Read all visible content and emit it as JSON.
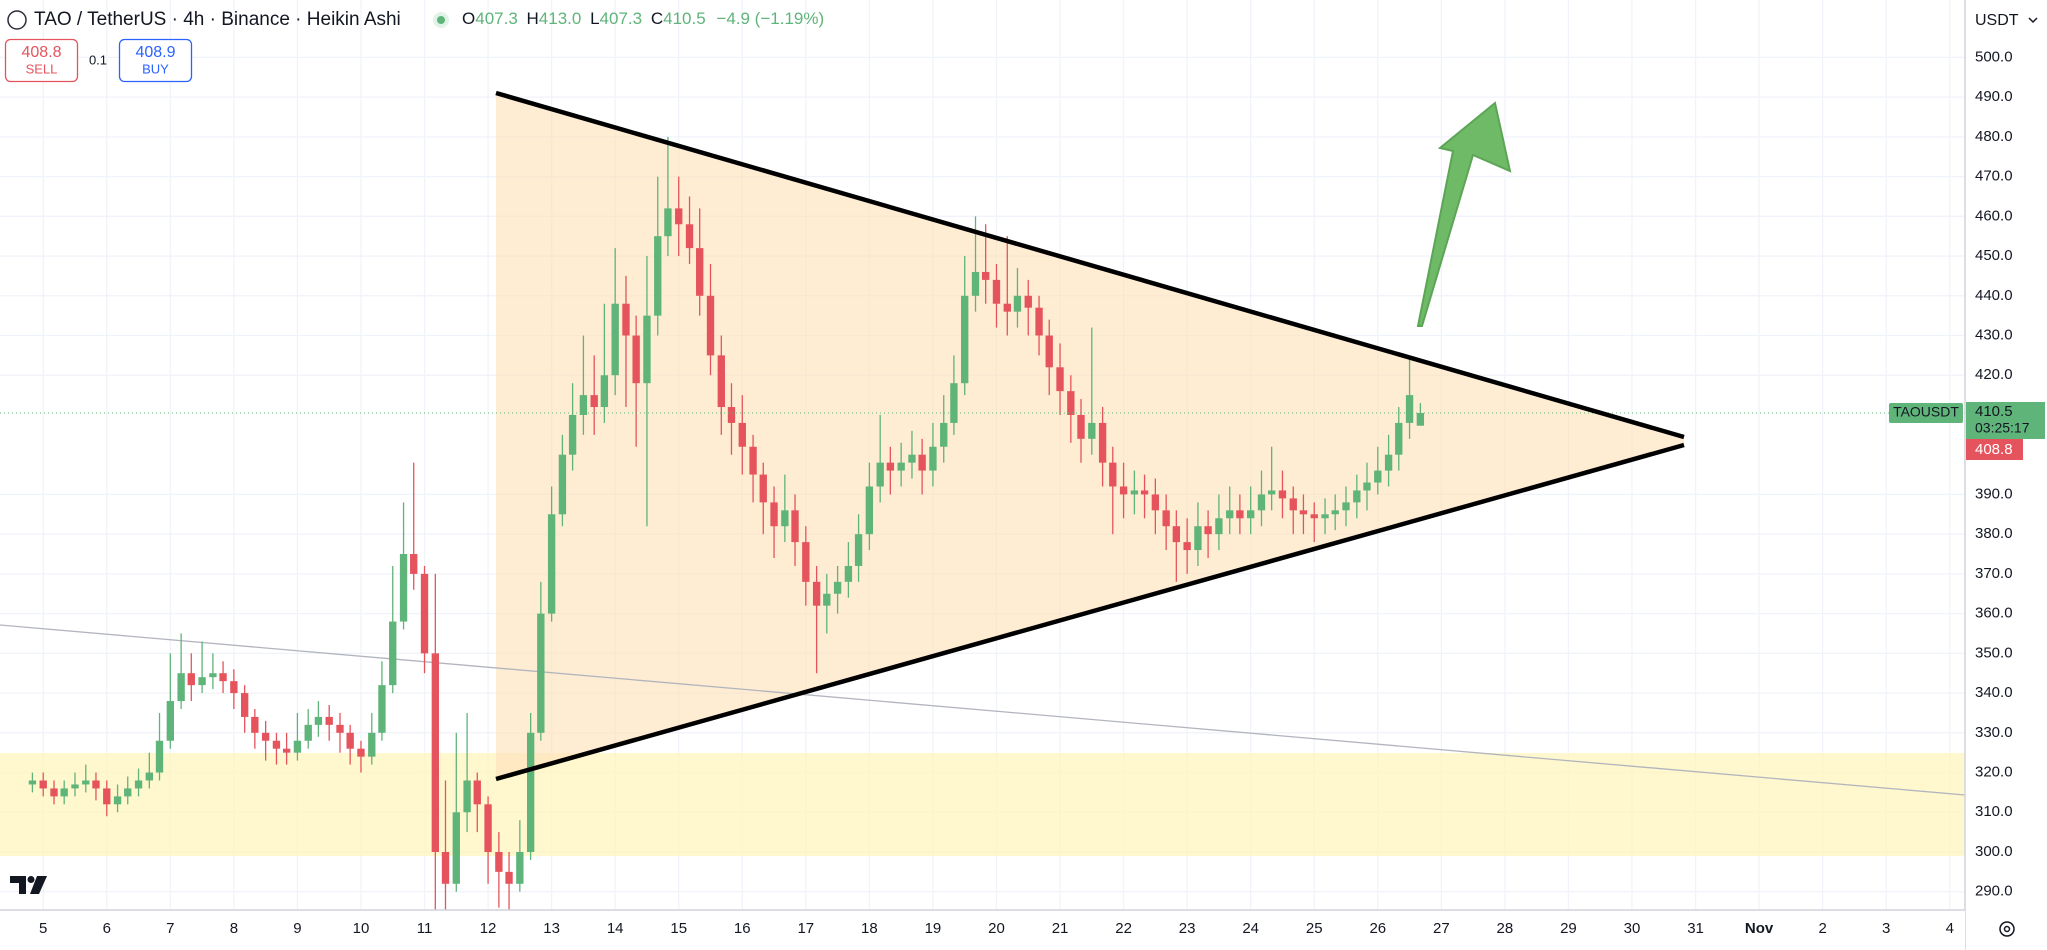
{
  "header": {
    "symbol": "TAO / TetherUS · 4h · Binance · Heikin Ashi",
    "ohlc": [
      {
        "key": "O",
        "value": "407.3"
      },
      {
        "key": "H",
        "value": "413.0"
      },
      {
        "key": "L",
        "value": "407.3"
      },
      {
        "key": "C",
        "value": "410.5"
      }
    ],
    "change": "−4.9 (−1.19%)"
  },
  "trade": {
    "sell_price": "408.8",
    "sell": "SELL",
    "quantity": "0.1",
    "buy_price": "408.9",
    "buy": "BUY"
  },
  "currency": "USDT",
  "chart_data": {
    "type": "candlestick",
    "up_color": "#5fb47a",
    "down_color": "#e5545c",
    "grid": true,
    "xlim": [
      4.32,
      35.24
    ],
    "ylim": [
      285.4,
      514.45
    ],
    "xticks": [
      5,
      6,
      7,
      8,
      9,
      10,
      11,
      12,
      13,
      14,
      15,
      16,
      17,
      18,
      19,
      20,
      21,
      22,
      23,
      24,
      25,
      26,
      27,
      28,
      29,
      30,
      31,
      {
        "value": 32,
        "label": "Nov"
      },
      {
        "value": 33,
        "label": "2"
      },
      {
        "value": 34,
        "label": "3"
      },
      {
        "value": 35,
        "label": "4"
      }
    ],
    "yticks": [
      {
        "value": 290,
        "label": "290.0"
      },
      {
        "value": 300,
        "label": "300.0"
      },
      {
        "value": 310,
        "label": "310.0"
      },
      {
        "value": 320,
        "label": "320.0"
      },
      {
        "value": 330,
        "label": "330.0"
      },
      {
        "value": 340,
        "label": "340.0"
      },
      {
        "value": 350,
        "label": "350.0"
      },
      {
        "value": 360,
        "label": "360.0"
      },
      {
        "value": 370,
        "label": "370.0"
      },
      {
        "value": 380,
        "label": "380.0"
      },
      {
        "value": 390,
        "label": "390.0"
      },
      {
        "value": 420,
        "label": "420.0"
      },
      {
        "value": 430,
        "label": "430.0"
      },
      {
        "value": 440,
        "label": "440.0"
      },
      {
        "value": 450,
        "label": "450.0"
      },
      {
        "value": 460,
        "label": "460.0"
      },
      {
        "value": 470,
        "label": "470.0"
      },
      {
        "value": 480,
        "label": "480.0"
      },
      {
        "value": 490,
        "label": "490.0"
      },
      {
        "value": 500,
        "label": "500.0"
      }
    ],
    "x": [
      4.83,
      5,
      5.17,
      5.33,
      5.5,
      5.67,
      5.83,
      6,
      6.17,
      6.33,
      6.5,
      6.67,
      6.83,
      7,
      7.17,
      7.33,
      7.5,
      7.67,
      7.83,
      8,
      8.17,
      8.33,
      8.5,
      8.67,
      8.83,
      9,
      9.17,
      9.33,
      9.5,
      9.67,
      9.83,
      10,
      10.17,
      10.33,
      10.5,
      10.67,
      10.83,
      11,
      11.17,
      11.33,
      11.5,
      11.67,
      11.83,
      12,
      12.17,
      12.33,
      12.5,
      12.67,
      12.83,
      13,
      13.17,
      13.33,
      13.5,
      13.67,
      13.83,
      14,
      14.17,
      14.33,
      14.5,
      14.67,
      14.83,
      15,
      15.17,
      15.33,
      15.5,
      15.67,
      15.83,
      16,
      16.17,
      16.33,
      16.5,
      16.67,
      16.83,
      17,
      17.17,
      17.33,
      17.5,
      17.67,
      17.83,
      18,
      18.17,
      18.33,
      18.5,
      18.67,
      18.83,
      19,
      19.17,
      19.33,
      19.5,
      19.67,
      19.83,
      20,
      20.17,
      20.33,
      20.5,
      20.67,
      20.83,
      21,
      21.17,
      21.33,
      21.5,
      21.67,
      21.83,
      22,
      22.17,
      22.33,
      22.5,
      22.67,
      22.83,
      23,
      23.17,
      23.33,
      23.5,
      23.67,
      23.83,
      24,
      24.17,
      24.33,
      24.5,
      24.67,
      24.83,
      25,
      25.17,
      25.33,
      25.5,
      25.67,
      25.83,
      26,
      26.17,
      26.33,
      26.5,
      26.67
    ],
    "ohlc": [
      [
        317,
        320,
        315,
        318
      ],
      [
        318,
        320,
        314,
        316
      ],
      [
        316,
        318,
        312,
        314
      ],
      [
        314,
        318,
        312,
        316
      ],
      [
        316,
        320,
        314,
        317
      ],
      [
        317,
        322,
        315,
        318
      ],
      [
        318,
        320,
        313,
        316
      ],
      [
        316,
        318,
        309,
        312
      ],
      [
        312,
        317,
        310,
        314
      ],
      [
        314,
        319,
        312,
        316
      ],
      [
        316,
        321,
        314,
        318
      ],
      [
        318,
        325,
        316,
        320
      ],
      [
        320,
        335,
        318,
        328
      ],
      [
        328,
        350,
        326,
        338
      ],
      [
        338,
        355,
        336,
        345
      ],
      [
        345,
        350,
        338,
        342
      ],
      [
        342,
        353,
        340,
        344
      ],
      [
        344,
        350,
        341,
        345
      ],
      [
        345,
        348,
        340,
        343
      ],
      [
        343,
        346,
        336,
        340
      ],
      [
        340,
        342,
        330,
        334
      ],
      [
        334,
        336,
        326,
        330
      ],
      [
        330,
        333,
        323,
        328
      ],
      [
        328,
        330,
        322,
        326
      ],
      [
        326,
        330,
        322,
        325
      ],
      [
        325,
        335,
        323,
        328
      ],
      [
        328,
        336,
        326,
        332
      ],
      [
        332,
        338,
        329,
        334
      ],
      [
        334,
        337,
        328,
        332
      ],
      [
        332,
        335,
        325,
        330
      ],
      [
        330,
        332,
        322,
        326
      ],
      [
        326,
        328,
        320,
        324
      ],
      [
        324,
        335,
        322,
        330
      ],
      [
        330,
        348,
        328,
        342
      ],
      [
        342,
        372,
        340,
        358
      ],
      [
        358,
        388,
        356,
        375
      ],
      [
        375,
        398,
        366,
        370
      ],
      [
        370,
        372,
        345,
        350
      ],
      [
        350,
        370,
        283,
        300
      ],
      [
        300,
        318,
        285,
        292
      ],
      [
        292,
        330,
        290,
        310
      ],
      [
        310,
        335,
        305,
        318
      ],
      [
        318,
        320,
        305,
        312
      ],
      [
        312,
        314,
        292,
        300
      ],
      [
        300,
        305,
        286,
        295
      ],
      [
        295,
        300,
        284,
        292
      ],
      [
        292,
        308,
        290,
        300
      ],
      [
        300,
        335,
        298,
        330
      ],
      [
        330,
        368,
        328,
        360
      ],
      [
        360,
        392,
        358,
        385
      ],
      [
        385,
        405,
        382,
        400
      ],
      [
        400,
        418,
        396,
        410
      ],
      [
        410,
        430,
        405,
        415
      ],
      [
        415,
        425,
        405,
        412
      ],
      [
        412,
        438,
        408,
        420
      ],
      [
        420,
        452,
        415,
        438
      ],
      [
        438,
        445,
        412,
        430
      ],
      [
        430,
        435,
        402,
        418
      ],
      [
        418,
        450,
        382,
        435
      ],
      [
        435,
        470,
        430,
        455
      ],
      [
        455,
        480,
        450,
        462
      ],
      [
        462,
        470,
        450,
        458
      ],
      [
        458,
        465,
        448,
        452
      ],
      [
        452,
        462,
        435,
        440
      ],
      [
        440,
        448,
        420,
        425
      ],
      [
        425,
        430,
        405,
        412
      ],
      [
        412,
        418,
        400,
        408
      ],
      [
        408,
        415,
        395,
        402
      ],
      [
        402,
        405,
        388,
        395
      ],
      [
        395,
        398,
        380,
        388
      ],
      [
        388,
        392,
        374,
        382
      ],
      [
        382,
        395,
        378,
        386
      ],
      [
        386,
        390,
        372,
        378
      ],
      [
        378,
        382,
        362,
        368
      ],
      [
        368,
        372,
        345,
        362
      ],
      [
        362,
        370,
        355,
        365
      ],
      [
        365,
        372,
        360,
        368
      ],
      [
        368,
        378,
        364,
        372
      ],
      [
        372,
        385,
        368,
        380
      ],
      [
        380,
        398,
        376,
        392
      ],
      [
        392,
        410,
        388,
        398
      ],
      [
        398,
        402,
        390,
        396
      ],
      [
        396,
        403,
        392,
        398
      ],
      [
        398,
        406,
        394,
        400
      ],
      [
        400,
        404,
        390,
        396
      ],
      [
        396,
        408,
        392,
        402
      ],
      [
        402,
        415,
        398,
        408
      ],
      [
        408,
        425,
        405,
        418
      ],
      [
        418,
        450,
        415,
        440
      ],
      [
        440,
        460,
        436,
        446
      ],
      [
        446,
        458,
        438,
        444
      ],
      [
        444,
        448,
        432,
        438
      ],
      [
        438,
        455,
        430,
        436
      ],
      [
        436,
        447,
        432,
        440
      ],
      [
        440,
        444,
        430,
        437
      ],
      [
        437,
        440,
        425,
        430
      ],
      [
        430,
        434,
        415,
        422
      ],
      [
        422,
        428,
        410,
        416
      ],
      [
        416,
        420,
        403,
        410
      ],
      [
        410,
        414,
        398,
        404
      ],
      [
        404,
        432,
        400,
        408
      ],
      [
        408,
        412,
        392,
        398
      ],
      [
        398,
        402,
        380,
        392
      ],
      [
        392,
        398,
        384,
        390
      ],
      [
        390,
        396,
        385,
        391
      ],
      [
        391,
        395,
        384,
        390
      ],
      [
        390,
        394,
        380,
        386
      ],
      [
        386,
        390,
        376,
        382
      ],
      [
        382,
        386,
        368,
        378
      ],
      [
        378,
        384,
        370,
        376
      ],
      [
        376,
        388,
        372,
        382
      ],
      [
        382,
        386,
        374,
        380
      ],
      [
        380,
        390,
        376,
        384
      ],
      [
        384,
        392,
        380,
        386
      ],
      [
        386,
        390,
        380,
        384
      ],
      [
        384,
        392,
        380,
        386
      ],
      [
        386,
        396,
        382,
        390
      ],
      [
        390,
        402,
        386,
        391
      ],
      [
        391,
        396,
        384,
        389
      ],
      [
        389,
        392,
        380,
        386
      ],
      [
        386,
        390,
        380,
        385
      ],
      [
        385,
        388,
        378,
        384
      ],
      [
        384,
        389,
        380,
        385
      ],
      [
        385,
        390,
        381,
        386
      ],
      [
        386,
        392,
        382,
        388
      ],
      [
        388,
        395,
        384,
        391
      ],
      [
        391,
        398,
        386,
        393
      ],
      [
        393,
        402,
        390,
        396
      ],
      [
        396,
        405,
        392,
        400
      ],
      [
        400,
        412,
        396,
        408
      ],
      [
        408,
        424,
        404,
        415
      ],
      [
        407.3,
        413,
        407.3,
        410.5
      ]
    ],
    "symbol_tag": "TAOUSDT",
    "last_price": 410.5,
    "countdown": "03:25:17",
    "bid": 408.8
  }
}
